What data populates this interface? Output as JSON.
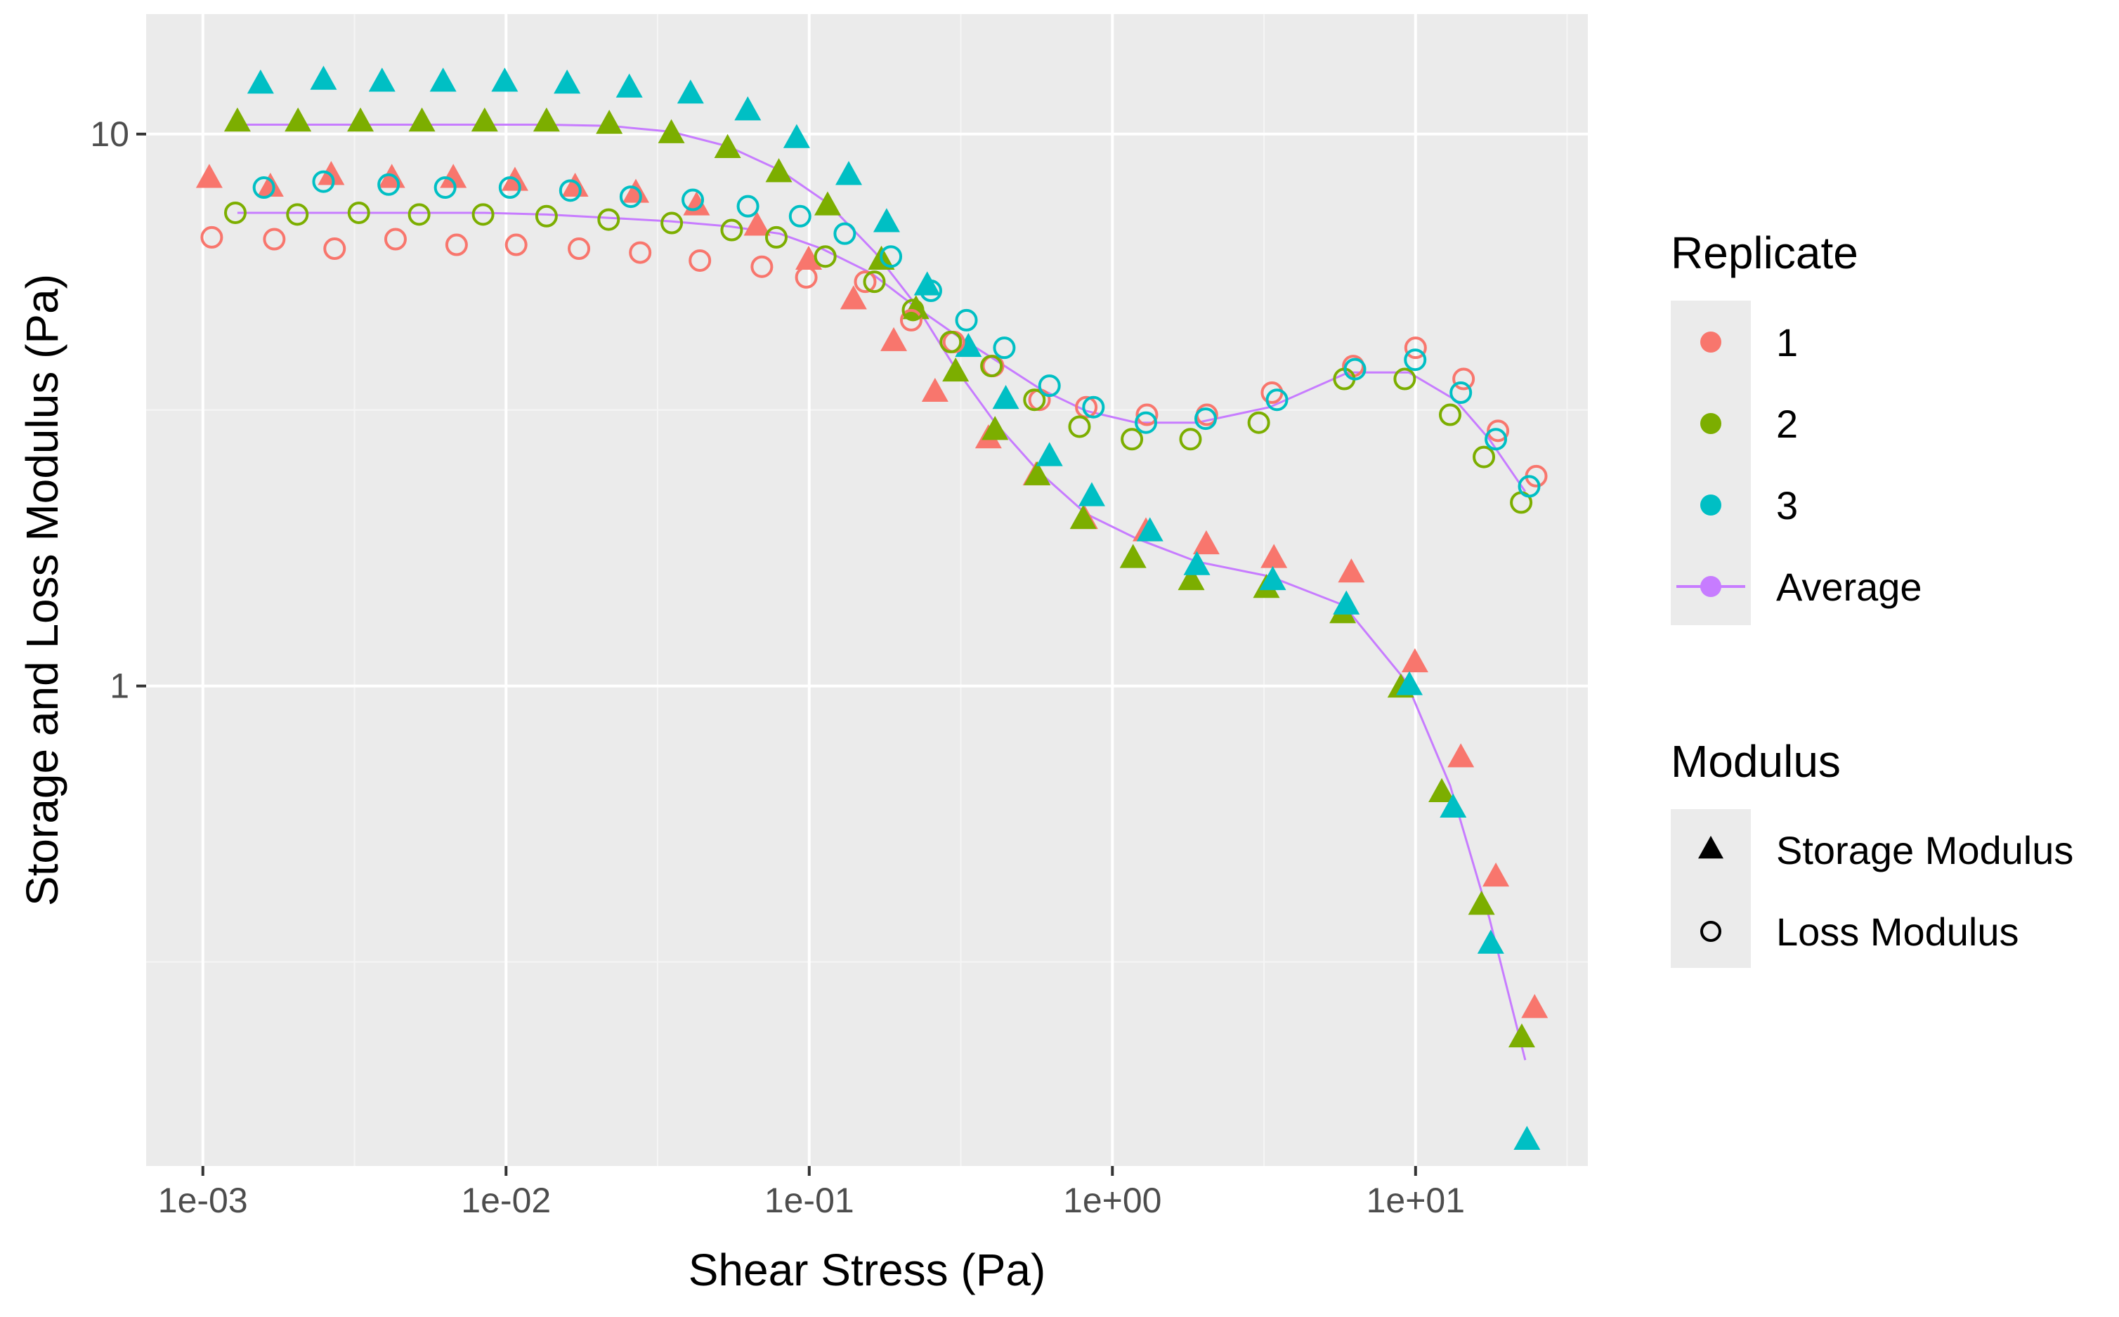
{
  "chart_data": {
    "type": "scatter",
    "x_scale": "log",
    "y_scale": "log",
    "xlabel": "Shear Stress (Pa)",
    "ylabel": "Storage and Loss Modulus (Pa)",
    "xlim": [
      0.00065,
      37
    ],
    "ylim": [
      0.135,
      16.5
    ],
    "x_ticks": [
      {
        "value": 0.001,
        "label": "1e-03"
      },
      {
        "value": 0.01,
        "label": "1e-02"
      },
      {
        "value": 0.1,
        "label": "1e-01"
      },
      {
        "value": 1,
        "label": "1e+00"
      },
      {
        "value": 10,
        "label": "1e+01"
      }
    ],
    "y_ticks": [
      {
        "value": 1,
        "label": "1"
      },
      {
        "value": 10,
        "label": "10"
      }
    ],
    "grid": true,
    "panel_background": "#EBEBEB",
    "legend_position": "right",
    "legend": {
      "replicate": {
        "title": "Replicate",
        "entries": [
          {
            "label": "1",
            "color": "#F8766D"
          },
          {
            "label": "2",
            "color": "#7CAE00"
          },
          {
            "label": "3",
            "color": "#00BFC4"
          },
          {
            "label": "Average",
            "color": "#C77CFF"
          }
        ]
      },
      "modulus": {
        "title": "Modulus",
        "entries": [
          {
            "label": "Storage Modulus",
            "shape": "filled-triangle"
          },
          {
            "label": "Loss Modulus",
            "shape": "open-circle"
          }
        ]
      }
    },
    "series": [
      {
        "replicate": "1",
        "modulus": "Storage Modulus",
        "color": "#F8766D",
        "points": [
          [
            0.00105,
            8.3
          ],
          [
            0.00167,
            8.0
          ],
          [
            0.00265,
            8.4
          ],
          [
            0.0042,
            8.3
          ],
          [
            0.0067,
            8.3
          ],
          [
            0.0107,
            8.2
          ],
          [
            0.0169,
            8.0
          ],
          [
            0.0268,
            7.8
          ],
          [
            0.0425,
            7.4
          ],
          [
            0.0673,
            6.8
          ],
          [
            0.0996,
            5.9
          ],
          [
            0.14,
            5.0
          ],
          [
            0.19,
            4.2
          ],
          [
            0.26,
            3.4
          ],
          [
            0.39,
            2.8
          ],
          [
            0.56,
            2.4
          ],
          [
            0.81,
            2.0
          ],
          [
            1.29,
            1.9
          ],
          [
            2.04,
            1.8
          ],
          [
            3.41,
            1.7
          ],
          [
            6.14,
            1.6
          ],
          [
            9.95,
            1.1
          ],
          [
            14.1,
            0.74
          ],
          [
            18.4,
            0.45
          ],
          [
            24.7,
            0.26
          ]
        ]
      },
      {
        "replicate": "2",
        "modulus": "Storage Modulus",
        "color": "#7CAE00",
        "points": [
          [
            0.0013,
            10.5
          ],
          [
            0.00206,
            10.5
          ],
          [
            0.00331,
            10.5
          ],
          [
            0.00528,
            10.5
          ],
          [
            0.0085,
            10.5
          ],
          [
            0.0136,
            10.5
          ],
          [
            0.0219,
            10.4
          ],
          [
            0.0351,
            10.0
          ],
          [
            0.0538,
            9.4
          ],
          [
            0.0794,
            8.5
          ],
          [
            0.115,
            7.4
          ],
          [
            0.173,
            5.9
          ],
          [
            0.225,
            4.8
          ],
          [
            0.304,
            3.7
          ],
          [
            0.41,
            2.9
          ],
          [
            0.565,
            2.4
          ],
          [
            0.801,
            2.0
          ],
          [
            1.17,
            1.7
          ],
          [
            1.82,
            1.55
          ],
          [
            3.22,
            1.5
          ],
          [
            5.75,
            1.35
          ],
          [
            8.94,
            0.99
          ],
          [
            12.2,
            0.64
          ],
          [
            16.5,
            0.4
          ],
          [
            22.4,
            0.23
          ]
        ]
      },
      {
        "replicate": "3",
        "modulus": "Storage Modulus",
        "color": "#00BFC4",
        "points": [
          [
            0.00155,
            12.3
          ],
          [
            0.0025,
            12.5
          ],
          [
            0.0039,
            12.4
          ],
          [
            0.0062,
            12.4
          ],
          [
            0.0099,
            12.4
          ],
          [
            0.0159,
            12.3
          ],
          [
            0.0255,
            12.1
          ],
          [
            0.0406,
            11.8
          ],
          [
            0.0627,
            11.0
          ],
          [
            0.0909,
            9.8
          ],
          [
            0.135,
            8.4
          ],
          [
            0.18,
            6.9
          ],
          [
            0.245,
            5.3
          ],
          [
            0.335,
            4.1
          ],
          [
            0.445,
            3.3
          ],
          [
            0.62,
            2.6
          ],
          [
            0.855,
            2.2
          ],
          [
            1.33,
            1.9
          ],
          [
            1.9,
            1.65
          ],
          [
            3.38,
            1.55
          ],
          [
            5.91,
            1.4
          ],
          [
            9.54,
            1.0
          ],
          [
            13.3,
            0.6
          ],
          [
            17.7,
            0.34
          ],
          [
            23.3,
            0.15
          ]
        ]
      },
      {
        "replicate": "1",
        "modulus": "Loss Modulus",
        "color": "#F8766D",
        "points": [
          [
            0.00107,
            6.5
          ],
          [
            0.00172,
            6.45
          ],
          [
            0.00272,
            6.2
          ],
          [
            0.00432,
            6.45
          ],
          [
            0.00687,
            6.3
          ],
          [
            0.0108,
            6.3
          ],
          [
            0.0174,
            6.2
          ],
          [
            0.0277,
            6.1
          ],
          [
            0.0436,
            5.9
          ],
          [
            0.0698,
            5.75
          ],
          [
            0.0978,
            5.5
          ],
          [
            0.153,
            5.4
          ],
          [
            0.217,
            4.6
          ],
          [
            0.3,
            4.2
          ],
          [
            0.404,
            3.8
          ],
          [
            0.575,
            3.3
          ],
          [
            0.82,
            3.2
          ],
          [
            1.3,
            3.1
          ],
          [
            2.05,
            3.1
          ],
          [
            3.36,
            3.4
          ],
          [
            6.23,
            3.8
          ],
          [
            10.0,
            4.1
          ],
          [
            14.4,
            3.6
          ],
          [
            18.7,
            2.9
          ],
          [
            25.0,
            2.4
          ]
        ]
      },
      {
        "replicate": "2",
        "modulus": "Loss Modulus",
        "color": "#7CAE00",
        "points": [
          [
            0.00128,
            7.2
          ],
          [
            0.00205,
            7.15
          ],
          [
            0.00327,
            7.2
          ],
          [
            0.00517,
            7.15
          ],
          [
            0.0084,
            7.15
          ],
          [
            0.0136,
            7.1
          ],
          [
            0.0218,
            7.0
          ],
          [
            0.0352,
            6.9
          ],
          [
            0.0555,
            6.7
          ],
          [
            0.0779,
            6.5
          ],
          [
            0.113,
            6.0
          ],
          [
            0.164,
            5.4
          ],
          [
            0.22,
            4.8
          ],
          [
            0.293,
            4.2
          ],
          [
            0.399,
            3.8
          ],
          [
            0.553,
            3.3
          ],
          [
            0.779,
            2.95
          ],
          [
            1.16,
            2.8
          ],
          [
            1.81,
            2.8
          ],
          [
            3.04,
            3.0
          ],
          [
            5.82,
            3.6
          ],
          [
            9.21,
            3.6
          ],
          [
            13.0,
            3.1
          ],
          [
            16.8,
            2.6
          ],
          [
            22.3,
            2.15
          ]
        ]
      },
      {
        "replicate": "3",
        "modulus": "Loss Modulus",
        "color": "#00BFC4",
        "points": [
          [
            0.00159,
            8.0
          ],
          [
            0.0025,
            8.2
          ],
          [
            0.0041,
            8.1
          ],
          [
            0.0063,
            8.0
          ],
          [
            0.0103,
            8.0
          ],
          [
            0.0163,
            7.9
          ],
          [
            0.0258,
            7.7
          ],
          [
            0.0413,
            7.6
          ],
          [
            0.0628,
            7.4
          ],
          [
            0.0933,
            7.1
          ],
          [
            0.131,
            6.6
          ],
          [
            0.186,
            6.0
          ],
          [
            0.252,
            5.2
          ],
          [
            0.33,
            4.6
          ],
          [
            0.44,
            4.1
          ],
          [
            0.62,
            3.5
          ],
          [
            0.866,
            3.2
          ],
          [
            1.29,
            3.0
          ],
          [
            2.03,
            3.05
          ],
          [
            3.49,
            3.3
          ],
          [
            6.31,
            3.75
          ],
          [
            9.97,
            3.9
          ],
          [
            14.1,
            3.4
          ],
          [
            18.4,
            2.8
          ],
          [
            23.7,
            2.3
          ]
        ]
      },
      {
        "replicate": "Average",
        "modulus": "Storage Modulus",
        "color": "#C77CFF",
        "points": [
          [
            0.0013,
            10.4
          ],
          [
            0.002,
            10.4
          ],
          [
            0.0033,
            10.4
          ],
          [
            0.0053,
            10.4
          ],
          [
            0.0085,
            10.4
          ],
          [
            0.0136,
            10.4
          ],
          [
            0.022,
            10.35
          ],
          [
            0.035,
            10.1
          ],
          [
            0.054,
            9.5
          ],
          [
            0.08,
            8.6
          ],
          [
            0.115,
            7.5
          ],
          [
            0.165,
            6.1
          ],
          [
            0.225,
            4.9
          ],
          [
            0.3,
            3.8
          ],
          [
            0.41,
            3.0
          ],
          [
            0.57,
            2.45
          ],
          [
            0.82,
            2.05
          ],
          [
            1.2,
            1.85
          ],
          [
            1.9,
            1.68
          ],
          [
            3.3,
            1.58
          ],
          [
            5.8,
            1.4
          ],
          [
            9.3,
            1.02
          ],
          [
            13.0,
            0.66
          ],
          [
            17.5,
            0.38
          ],
          [
            23.0,
            0.21
          ]
        ]
      },
      {
        "replicate": "Average",
        "modulus": "Loss Modulus",
        "color": "#C77CFF",
        "points": [
          [
            0.0013,
            7.2
          ],
          [
            0.002,
            7.2
          ],
          [
            0.0033,
            7.2
          ],
          [
            0.0053,
            7.2
          ],
          [
            0.0085,
            7.2
          ],
          [
            0.0136,
            7.15
          ],
          [
            0.022,
            7.05
          ],
          [
            0.035,
            6.95
          ],
          [
            0.055,
            6.8
          ],
          [
            0.08,
            6.6
          ],
          [
            0.11,
            6.2
          ],
          [
            0.16,
            5.6
          ],
          [
            0.22,
            4.9
          ],
          [
            0.3,
            4.35
          ],
          [
            0.41,
            3.9
          ],
          [
            0.58,
            3.45
          ],
          [
            0.82,
            3.15
          ],
          [
            1.2,
            3.0
          ],
          [
            1.9,
            3.0
          ],
          [
            3.3,
            3.2
          ],
          [
            6.0,
            3.7
          ],
          [
            9.5,
            3.7
          ],
          [
            13.5,
            3.3
          ],
          [
            17.5,
            2.8
          ],
          [
            23.0,
            2.25
          ]
        ]
      }
    ]
  }
}
